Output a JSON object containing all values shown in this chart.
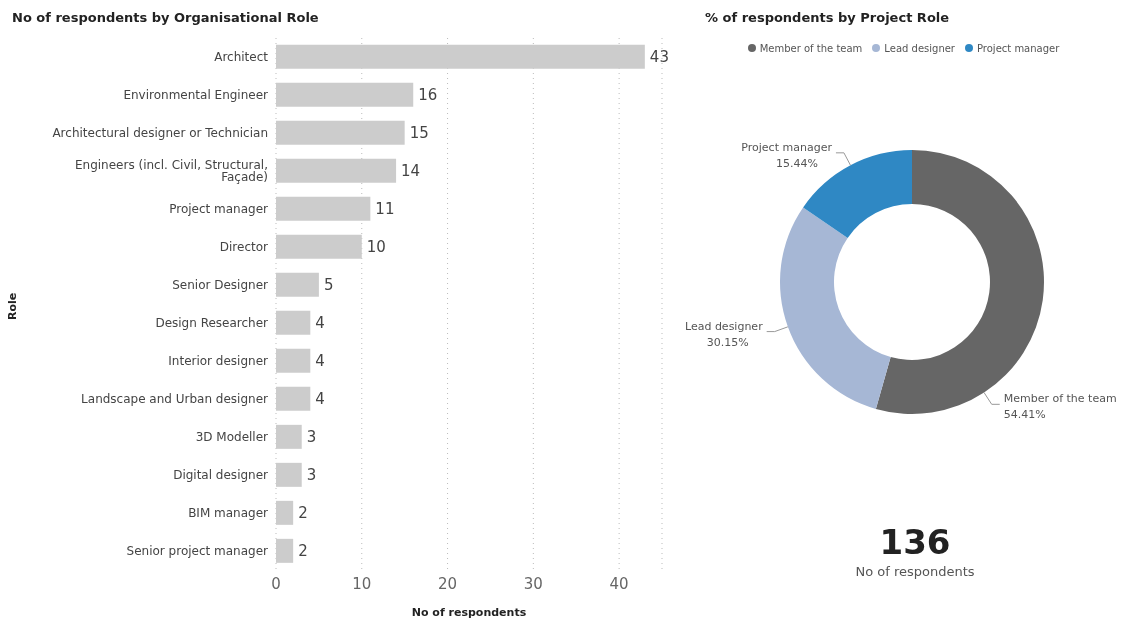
{
  "chart_data": [
    {
      "type": "bar",
      "title": "No of respondents by Organisational Role",
      "orientation": "horizontal",
      "xlabel": "No of respondents",
      "ylabel": "Role",
      "categories": [
        "Architect",
        "Environmental Engineer",
        "Architectural designer or Technician",
        "Engineers (incl. Civil, Structural, Façade)",
        "Project manager",
        "Director",
        "Senior Designer",
        "Design Researcher",
        "Interior designer",
        "Landscape and Urban designer",
        "3D Modeller",
        "Digital designer",
        "BIM manager",
        "Senior project manager"
      ],
      "values": [
        43,
        16,
        15,
        14,
        11,
        10,
        5,
        4,
        4,
        4,
        3,
        3,
        2,
        2
      ],
      "color": "#cccccc",
      "xlim": [
        0,
        45
      ],
      "xticks": [
        0,
        10,
        20,
        30,
        40
      ],
      "grid": "x",
      "data_labels": true
    },
    {
      "type": "donut",
      "title": "% of respondents by Project Role",
      "categories": [
        "Member of the team",
        "Lead designer",
        "Project manager"
      ],
      "values": [
        54.41,
        30.15,
        15.44
      ],
      "colors": [
        "#666666",
        "#a6b7d5",
        "#2f88c4"
      ],
      "value_labels": [
        "54.41%",
        "30.15%",
        "15.44%"
      ],
      "legend": "top"
    },
    {
      "type": "other",
      "categories": [
        "No of respondents"
      ],
      "values": [
        136
      ],
      "data_labels": true
    }
  ]
}
